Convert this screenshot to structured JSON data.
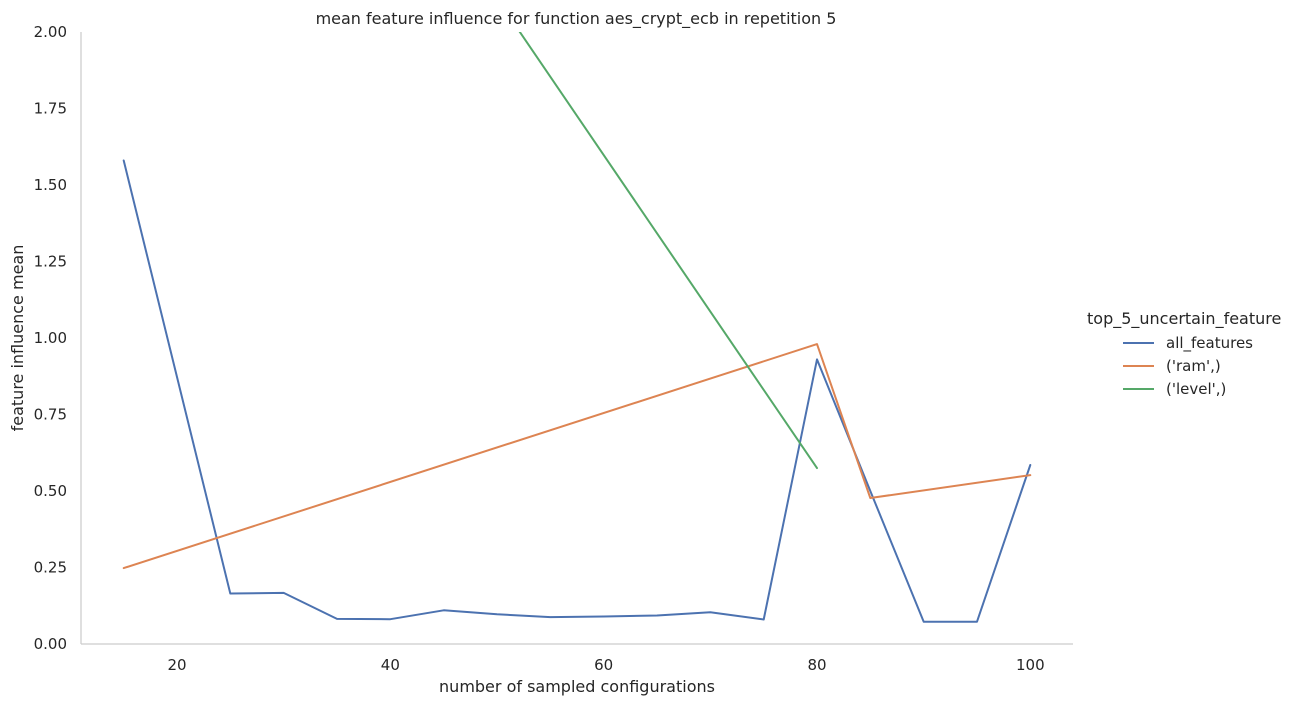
{
  "chart_data": {
    "type": "line",
    "title": "mean feature influence for function aes_crypt_ecb in repetition 5",
    "xlabel": "number of sampled configurations",
    "ylabel": "feature influence mean",
    "xlim": [
      11,
      104
    ],
    "ylim": [
      0,
      2.0
    ],
    "xticks": [
      20,
      40,
      60,
      80,
      100
    ],
    "yticks": [
      0.0,
      0.25,
      0.5,
      0.75,
      1.0,
      1.25,
      1.5,
      1.75,
      2.0
    ],
    "xtick_labels": [
      "20",
      "40",
      "60",
      "80",
      "100"
    ],
    "ytick_labels": [
      "0.00",
      "0.25",
      "0.50",
      "0.75",
      "1.00",
      "1.25",
      "1.50",
      "1.75",
      "2.00"
    ],
    "grid": false,
    "legend": {
      "title": "top_5_uncertain_feature",
      "placement": "right"
    },
    "series": [
      {
        "name": "all_features",
        "color": "#4c72b0",
        "x": [
          15,
          25,
          30,
          35,
          40,
          45,
          50,
          55,
          60,
          65,
          70,
          75,
          80,
          85,
          90,
          95,
          100
        ],
        "y": [
          1.58,
          0.165,
          0.167,
          0.082,
          0.081,
          0.11,
          0.097,
          0.088,
          0.09,
          0.093,
          0.104,
          0.08,
          0.93,
          0.5,
          0.073,
          0.073,
          0.585
        ]
      },
      {
        "name": "('ram',)",
        "color": "#dd8452",
        "x": [
          15,
          80,
          85,
          100
        ],
        "y": [
          0.248,
          0.98,
          0.477,
          0.552
        ]
      },
      {
        "name": "('level',)",
        "color": "#55a868",
        "x": [
          15,
          80
        ],
        "y": [
          3.9,
          0.575
        ]
      }
    ]
  }
}
